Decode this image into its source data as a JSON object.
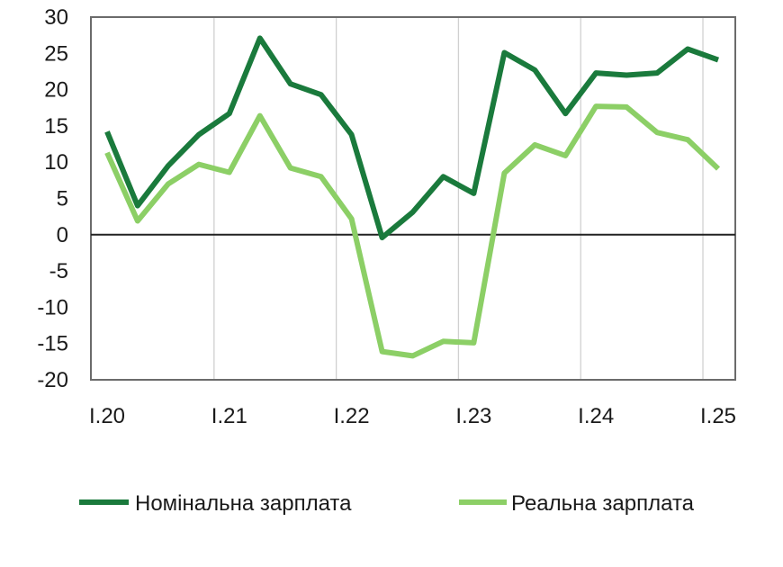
{
  "chart_data": {
    "type": "line",
    "x": [
      "I.20",
      "II.20",
      "III.20",
      "IV.20",
      "I.21",
      "II.21",
      "III.21",
      "IV.21",
      "I.22",
      "II.22",
      "III.22",
      "IV.22",
      "I.23",
      "II.23",
      "III.23",
      "IV.23",
      "I.24",
      "II.24",
      "III.24",
      "IV.24",
      "I.25"
    ],
    "x_tick_labels": [
      "I.20",
      "I.21",
      "I.22",
      "I.23",
      "I.24",
      "I.25"
    ],
    "y_tick_labels": [
      "30",
      "25",
      "20",
      "15",
      "10",
      "5",
      "0",
      "-5",
      "-10",
      "-15",
      "-20"
    ],
    "ylim": [
      -20,
      30
    ],
    "y_step": 5,
    "grid": "vertical at year ticks",
    "legend_position": "bottom",
    "series": [
      {
        "name": "Номінальна зарплата",
        "color": "#1a7a3c",
        "values": [
          14.2,
          4.0,
          9.5,
          13.8,
          16.7,
          27.1,
          20.8,
          19.3,
          13.8,
          -0.4,
          3.1,
          8.0,
          5.7,
          25.1,
          22.7,
          16.7,
          22.3,
          22.0,
          22.3,
          25.6,
          24.1
        ]
      },
      {
        "name": "Реальна зарплата",
        "color": "#8ccf66",
        "values": [
          11.3,
          1.9,
          7.0,
          9.7,
          8.6,
          16.4,
          9.2,
          8.0,
          2.2,
          -16.1,
          -16.7,
          -14.7,
          -14.9,
          8.5,
          12.4,
          10.9,
          17.7,
          17.6,
          14.1,
          13.1,
          9.1
        ]
      }
    ]
  }
}
